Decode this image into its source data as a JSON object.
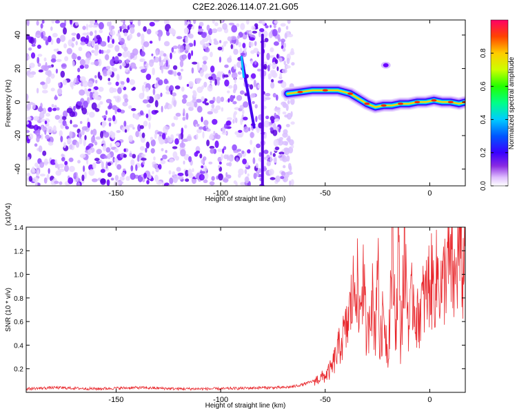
{
  "title": "C2E2.2026.114.07.21.G05",
  "chart_data": [
    {
      "type": "heatmap",
      "title": "C2E2.2026.114.07.21.G05",
      "xlabel": "Height of straight line (km)",
      "ylabel": "Frequency (Hz)",
      "xlim": [
        -193,
        17
      ],
      "ylim": [
        -50,
        49
      ],
      "xticks": [
        -150,
        -100,
        -50,
        0
      ],
      "yticks": [
        -40,
        -20,
        0,
        20,
        40
      ],
      "colorbar": {
        "label": "Normalized spectral amplitude",
        "range": [
          0,
          1
        ],
        "ticks": [
          0.0,
          0.2,
          0.4,
          0.6,
          0.8
        ]
      },
      "noise_region_x": [
        -193,
        -70
      ],
      "vertical_streaks": [
        {
          "x_top": -90,
          "x_bottom": -84,
          "y_top": 27,
          "y_bottom": -15
        },
        {
          "x_top": -80,
          "x_bottom": -80,
          "y_top": 40,
          "y_bottom": -50
        }
      ],
      "trace": {
        "x": [
          -68,
          -62,
          -56,
          -50,
          -44,
          -38,
          -34,
          -30,
          -26,
          -22,
          -18,
          -14,
          -10,
          -6,
          -2,
          2,
          6,
          10,
          14,
          17
        ],
        "y": [
          5,
          6,
          7,
          7,
          7,
          5,
          2,
          -1,
          -3,
          -2,
          -2,
          -1,
          -1,
          0,
          0,
          1,
          0,
          0,
          -1,
          0
        ]
      },
      "blobs": [
        {
          "x": -21,
          "y": 22
        }
      ]
    },
    {
      "type": "line",
      "xlabel": "Height of straight line (km)",
      "ylabel": "SNR (10 * v/v)",
      "y_scale_note": "(x10^4)",
      "xlim": [
        -193,
        17
      ],
      "ylim": [
        0,
        1.4
      ],
      "xticks": [
        -150,
        -100,
        -50,
        0
      ],
      "yticks": [
        0.2,
        0.4,
        0.6,
        0.8,
        1.0,
        1.2,
        1.4
      ],
      "series": [
        {
          "name": "SNR",
          "color": "#e8262b",
          "x": [
            -193,
            -180,
            -160,
            -140,
            -120,
            -100,
            -80,
            -70,
            -65,
            -60,
            -55,
            -50,
            -47,
            -45,
            -42,
            -40,
            -38,
            -36,
            -35,
            -34,
            -32,
            -30,
            -28,
            -26,
            -25,
            -24,
            -22,
            -20,
            -18,
            -16,
            -15,
            -14,
            -12,
            -10,
            -8,
            -6,
            -4,
            -2,
            0,
            2,
            4,
            6,
            8,
            10,
            12,
            14,
            16,
            17
          ],
          "y": [
            0.03,
            0.04,
            0.03,
            0.04,
            0.03,
            0.03,
            0.04,
            0.04,
            0.05,
            0.07,
            0.1,
            0.14,
            0.2,
            0.3,
            0.45,
            0.52,
            0.7,
            0.9,
            1.1,
            0.6,
            1.0,
            0.4,
            0.9,
            0.5,
            1.3,
            0.35,
            0.7,
            0.3,
            1.2,
            0.5,
            1.4,
            0.4,
            1.2,
            0.55,
            0.85,
            0.6,
            0.75,
            0.8,
            0.95,
            0.9,
            1.0,
            0.85,
            1.1,
            1.05,
            0.9,
            1.25,
            1.0,
            1.3
          ]
        }
      ]
    }
  ],
  "colors": {
    "line": "#e8262b",
    "noise": "#6a00ff",
    "axis": "#000000"
  }
}
